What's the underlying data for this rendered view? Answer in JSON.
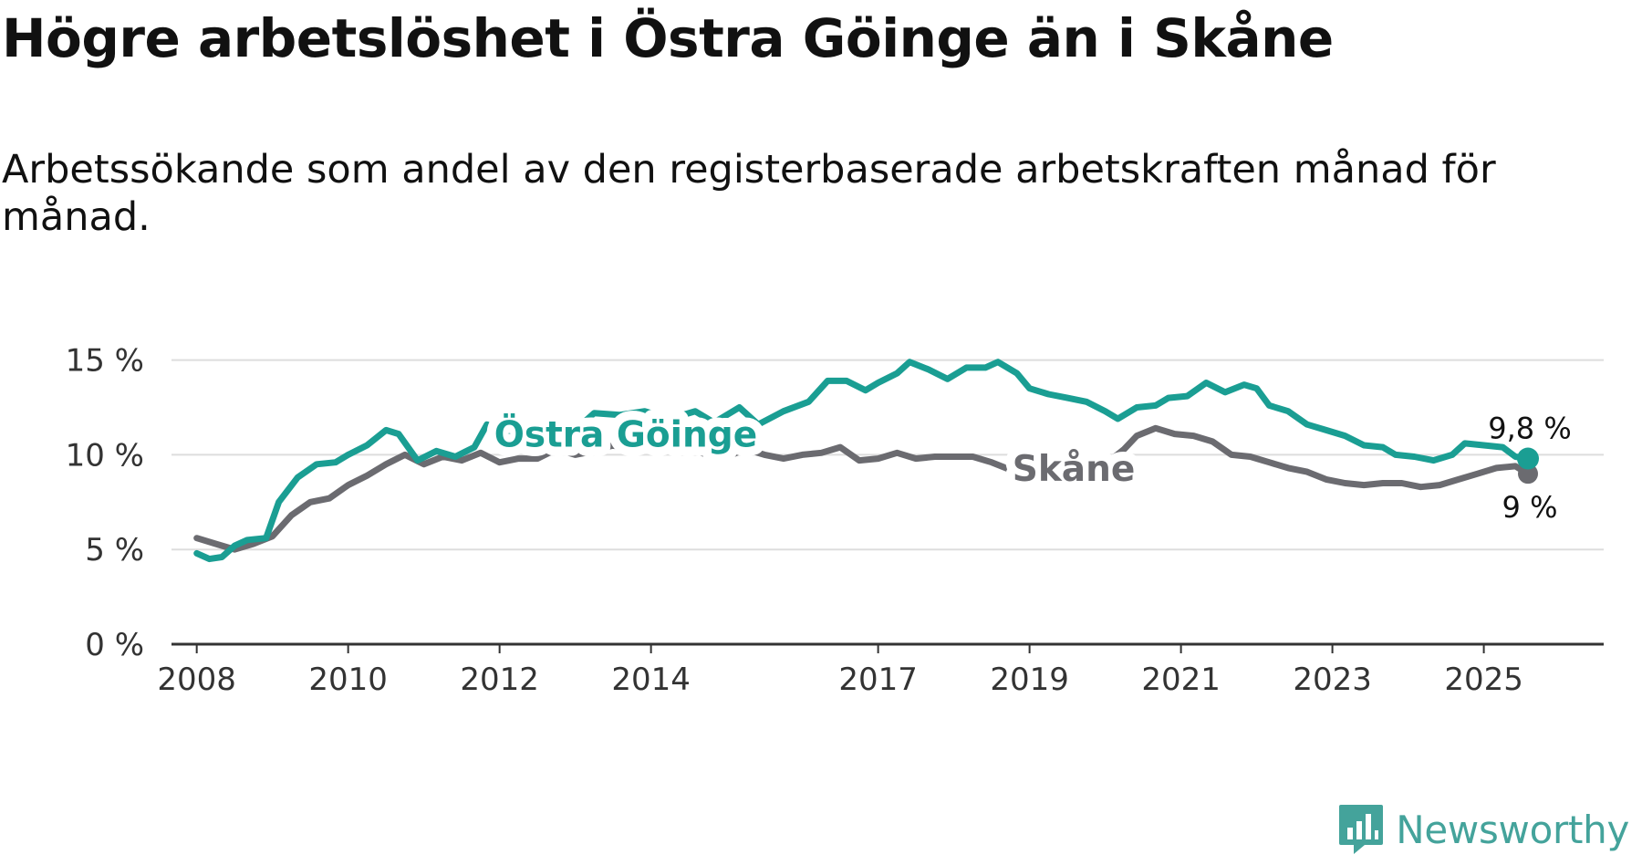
{
  "title": "Högre arbetslöshet i Östra Göinge än i Skåne",
  "subtitle": "Arbetssökande som andel av den registerbaserade arbetskraften månad för månad.",
  "brand": {
    "name": "Newsworthy",
    "color": "#44a39b",
    "icon": "bar-chart-bubble-icon"
  },
  "chart_data": {
    "type": "line",
    "y_ticks": [
      0,
      5,
      10,
      15
    ],
    "y_tick_labels": [
      "0 %",
      "5 %",
      "10 %",
      "15 %"
    ],
    "ylim": [
      0,
      15.8
    ],
    "x_ticks": [
      "2008",
      "2010",
      "2012",
      "2014",
      "2017",
      "2019",
      "2021",
      "2023",
      "2025"
    ],
    "xlim": [
      "2007-09",
      "2026-08"
    ],
    "grid": true,
    "series": [
      {
        "name": "Östra Göinge",
        "color": "#1a9e93",
        "end_label": "9,8 %",
        "points": [
          [
            "2008-01",
            4.8
          ],
          [
            "2008-03",
            4.5
          ],
          [
            "2008-05",
            4.6
          ],
          [
            "2008-07",
            5.2
          ],
          [
            "2008-09",
            5.5
          ],
          [
            "2008-12",
            5.6
          ],
          [
            "2009-02",
            7.5
          ],
          [
            "2009-05",
            8.8
          ],
          [
            "2009-08",
            9.5
          ],
          [
            "2009-11",
            9.6
          ],
          [
            "2010-01",
            10.0
          ],
          [
            "2010-04",
            10.5
          ],
          [
            "2010-07",
            11.3
          ],
          [
            "2010-09",
            11.1
          ],
          [
            "2010-12",
            9.7
          ],
          [
            "2011-03",
            10.2
          ],
          [
            "2011-06",
            9.9
          ],
          [
            "2011-09",
            10.4
          ],
          [
            "2011-11",
            11.6
          ],
          [
            "2012-02",
            11.2
          ],
          [
            "2012-05",
            10.5
          ],
          [
            "2012-08",
            11.2
          ],
          [
            "2012-10",
            10.9
          ],
          [
            "2013-01",
            11.3
          ],
          [
            "2013-04",
            12.2
          ],
          [
            "2013-08",
            12.1
          ],
          [
            "2013-12",
            12.3
          ],
          [
            "2014-04",
            11.9
          ],
          [
            "2014-08",
            12.3
          ],
          [
            "2014-11",
            11.7
          ],
          [
            "2015-03",
            12.5
          ],
          [
            "2015-06",
            11.6
          ],
          [
            "2015-10",
            12.3
          ],
          [
            "2016-02",
            12.8
          ],
          [
            "2016-05",
            13.9
          ],
          [
            "2016-08",
            13.9
          ],
          [
            "2016-11",
            13.4
          ],
          [
            "2017-01",
            13.8
          ],
          [
            "2017-04",
            14.3
          ],
          [
            "2017-06",
            14.9
          ],
          [
            "2017-09",
            14.5
          ],
          [
            "2017-12",
            14.0
          ],
          [
            "2018-03",
            14.6
          ],
          [
            "2018-06",
            14.6
          ],
          [
            "2018-08",
            14.9
          ],
          [
            "2018-11",
            14.3
          ],
          [
            "2019-01",
            13.5
          ],
          [
            "2019-04",
            13.2
          ],
          [
            "2019-07",
            13.0
          ],
          [
            "2019-10",
            12.8
          ],
          [
            "2020-01",
            12.3
          ],
          [
            "2020-03",
            11.9
          ],
          [
            "2020-06",
            12.5
          ],
          [
            "2020-09",
            12.6
          ],
          [
            "2020-11",
            13.0
          ],
          [
            "2021-02",
            13.1
          ],
          [
            "2021-05",
            13.8
          ],
          [
            "2021-08",
            13.3
          ],
          [
            "2021-11",
            13.7
          ],
          [
            "2022-01",
            13.5
          ],
          [
            "2022-03",
            12.6
          ],
          [
            "2022-06",
            12.3
          ],
          [
            "2022-09",
            11.6
          ],
          [
            "2022-12",
            11.3
          ],
          [
            "2023-03",
            11.0
          ],
          [
            "2023-06",
            10.5
          ],
          [
            "2023-09",
            10.4
          ],
          [
            "2023-11",
            10.0
          ],
          [
            "2024-02",
            9.9
          ],
          [
            "2024-05",
            9.7
          ],
          [
            "2024-08",
            10.0
          ],
          [
            "2024-10",
            10.6
          ],
          [
            "2025-01",
            10.5
          ],
          [
            "2025-04",
            10.4
          ],
          [
            "2025-06",
            9.9
          ],
          [
            "2025-08",
            9.8
          ]
        ]
      },
      {
        "name": "Skåne",
        "color": "#6b6b70",
        "end_label": "9 %",
        "points": [
          [
            "2008-01",
            5.6
          ],
          [
            "2008-04",
            5.3
          ],
          [
            "2008-07",
            5.0
          ],
          [
            "2008-10",
            5.3
          ],
          [
            "2009-01",
            5.7
          ],
          [
            "2009-04",
            6.8
          ],
          [
            "2009-07",
            7.5
          ],
          [
            "2009-10",
            7.7
          ],
          [
            "2010-01",
            8.4
          ],
          [
            "2010-04",
            8.9
          ],
          [
            "2010-07",
            9.5
          ],
          [
            "2010-10",
            10.0
          ],
          [
            "2011-01",
            9.5
          ],
          [
            "2011-04",
            9.9
          ],
          [
            "2011-07",
            9.7
          ],
          [
            "2011-10",
            10.1
          ],
          [
            "2012-01",
            9.6
          ],
          [
            "2012-04",
            9.8
          ],
          [
            "2012-07",
            9.8
          ],
          [
            "2012-10",
            10.3
          ],
          [
            "2013-01",
            10.0
          ],
          [
            "2013-04",
            10.2
          ],
          [
            "2013-07",
            10.5
          ],
          [
            "2013-10",
            10.2
          ],
          [
            "2014-01",
            10.3
          ],
          [
            "2014-04",
            10.4
          ],
          [
            "2014-07",
            10.3
          ],
          [
            "2014-10",
            10.0
          ],
          [
            "2015-01",
            9.9
          ],
          [
            "2015-04",
            10.3
          ],
          [
            "2015-07",
            10.0
          ],
          [
            "2015-10",
            9.8
          ],
          [
            "2016-01",
            10.0
          ],
          [
            "2016-04",
            10.1
          ],
          [
            "2016-07",
            10.4
          ],
          [
            "2016-10",
            9.7
          ],
          [
            "2017-01",
            9.8
          ],
          [
            "2017-04",
            10.1
          ],
          [
            "2017-07",
            9.8
          ],
          [
            "2017-10",
            9.9
          ],
          [
            "2018-01",
            9.9
          ],
          [
            "2018-04",
            9.9
          ],
          [
            "2018-07",
            9.6
          ],
          [
            "2018-10",
            9.2
          ],
          [
            "2019-01",
            9.4
          ],
          [
            "2019-04",
            9.3
          ],
          [
            "2019-07",
            9.3
          ],
          [
            "2019-10",
            9.3
          ],
          [
            "2020-01",
            9.5
          ],
          [
            "2020-04",
            10.3
          ],
          [
            "2020-06",
            11.0
          ],
          [
            "2020-09",
            11.4
          ],
          [
            "2020-12",
            11.1
          ],
          [
            "2021-03",
            11.0
          ],
          [
            "2021-06",
            10.7
          ],
          [
            "2021-09",
            10.0
          ],
          [
            "2021-12",
            9.9
          ],
          [
            "2022-03",
            9.6
          ],
          [
            "2022-06",
            9.3
          ],
          [
            "2022-09",
            9.1
          ],
          [
            "2022-12",
            8.7
          ],
          [
            "2023-03",
            8.5
          ],
          [
            "2023-06",
            8.4
          ],
          [
            "2023-09",
            8.5
          ],
          [
            "2023-12",
            8.5
          ],
          [
            "2024-03",
            8.3
          ],
          [
            "2024-06",
            8.4
          ],
          [
            "2024-09",
            8.7
          ],
          [
            "2024-12",
            9.0
          ],
          [
            "2025-03",
            9.3
          ],
          [
            "2025-06",
            9.4
          ],
          [
            "2025-08",
            9.0
          ]
        ]
      }
    ]
  }
}
